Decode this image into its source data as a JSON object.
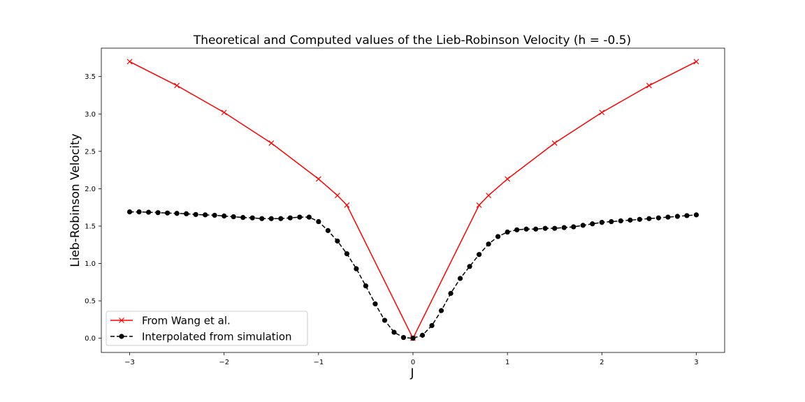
{
  "chart_data": {
    "type": "line",
    "title": "Theoretical and Computed values of the Lieb-Robinson Velocity (h = -0.5)",
    "xlabel": "J",
    "ylabel": "Lieb-Robinson Velocity",
    "xlim": [
      -3.3,
      3.3
    ],
    "ylim": [
      -0.19,
      3.88
    ],
    "x_ticks": [
      {
        "value": -3,
        "label": "−3"
      },
      {
        "value": -2,
        "label": "−2"
      },
      {
        "value": -1,
        "label": "−1"
      },
      {
        "value": 0,
        "label": "0"
      },
      {
        "value": 1,
        "label": "1"
      },
      {
        "value": 2,
        "label": "2"
      },
      {
        "value": 3,
        "label": "3"
      }
    ],
    "y_ticks": [
      {
        "value": 0.0,
        "label": "0.0"
      },
      {
        "value": 0.5,
        "label": "0.5"
      },
      {
        "value": 1.0,
        "label": "1.0"
      },
      {
        "value": 1.5,
        "label": "1.5"
      },
      {
        "value": 2.0,
        "label": "2.0"
      },
      {
        "value": 2.5,
        "label": "2.5"
      },
      {
        "value": 3.0,
        "label": "3.0"
      },
      {
        "value": 3.5,
        "label": "3.5"
      }
    ],
    "grid": false,
    "legend_position": "lower-left",
    "series": [
      {
        "name": "From Wang et al.",
        "color": "#ff0000",
        "marker": "x",
        "line_style": "solid",
        "x": [
          -3.0,
          -2.5,
          -2.0,
          -1.5,
          -1.0,
          -0.8,
          -0.7,
          0.0,
          0.7,
          0.8,
          1.0,
          1.5,
          2.0,
          2.5,
          3.0
        ],
        "y": [
          3.7,
          3.38,
          3.02,
          2.61,
          2.13,
          1.91,
          1.78,
          0.0,
          1.78,
          1.91,
          2.13,
          2.61,
          3.02,
          3.38,
          3.7
        ]
      },
      {
        "name": "Interpolated from simulation",
        "color": "#000000",
        "marker": "o",
        "line_style": "dashed",
        "x": [
          -3.0,
          -2.9,
          -2.8,
          -2.7,
          -2.6,
          -2.5,
          -2.4,
          -2.3,
          -2.2,
          -2.1,
          -2.0,
          -1.9,
          -1.8,
          -1.7,
          -1.6,
          -1.5,
          -1.4,
          -1.3,
          -1.2,
          -1.1,
          -1.0,
          -0.9,
          -0.8,
          -0.7,
          -0.6,
          -0.5,
          -0.4,
          -0.3,
          -0.2,
          -0.1,
          0.0,
          0.1,
          0.2,
          0.3,
          0.4,
          0.5,
          0.6,
          0.7,
          0.8,
          0.9,
          1.0,
          1.1,
          1.2,
          1.3,
          1.4,
          1.5,
          1.6,
          1.7,
          1.8,
          1.9,
          2.0,
          2.1,
          2.2,
          2.3,
          2.4,
          2.5,
          2.6,
          2.7,
          2.8,
          2.9,
          3.0
        ],
        "y": [
          1.69,
          1.69,
          1.685,
          1.68,
          1.675,
          1.67,
          1.665,
          1.655,
          1.65,
          1.645,
          1.635,
          1.625,
          1.615,
          1.61,
          1.6,
          1.6,
          1.6,
          1.61,
          1.62,
          1.62,
          1.56,
          1.44,
          1.3,
          1.13,
          0.93,
          0.7,
          0.46,
          0.24,
          0.08,
          0.01,
          0.0,
          0.04,
          0.17,
          0.37,
          0.6,
          0.8,
          0.96,
          1.12,
          1.26,
          1.36,
          1.42,
          1.45,
          1.46,
          1.46,
          1.47,
          1.47,
          1.48,
          1.49,
          1.51,
          1.53,
          1.55,
          1.56,
          1.57,
          1.58,
          1.59,
          1.6,
          1.61,
          1.62,
          1.63,
          1.64,
          1.65
        ]
      }
    ]
  }
}
